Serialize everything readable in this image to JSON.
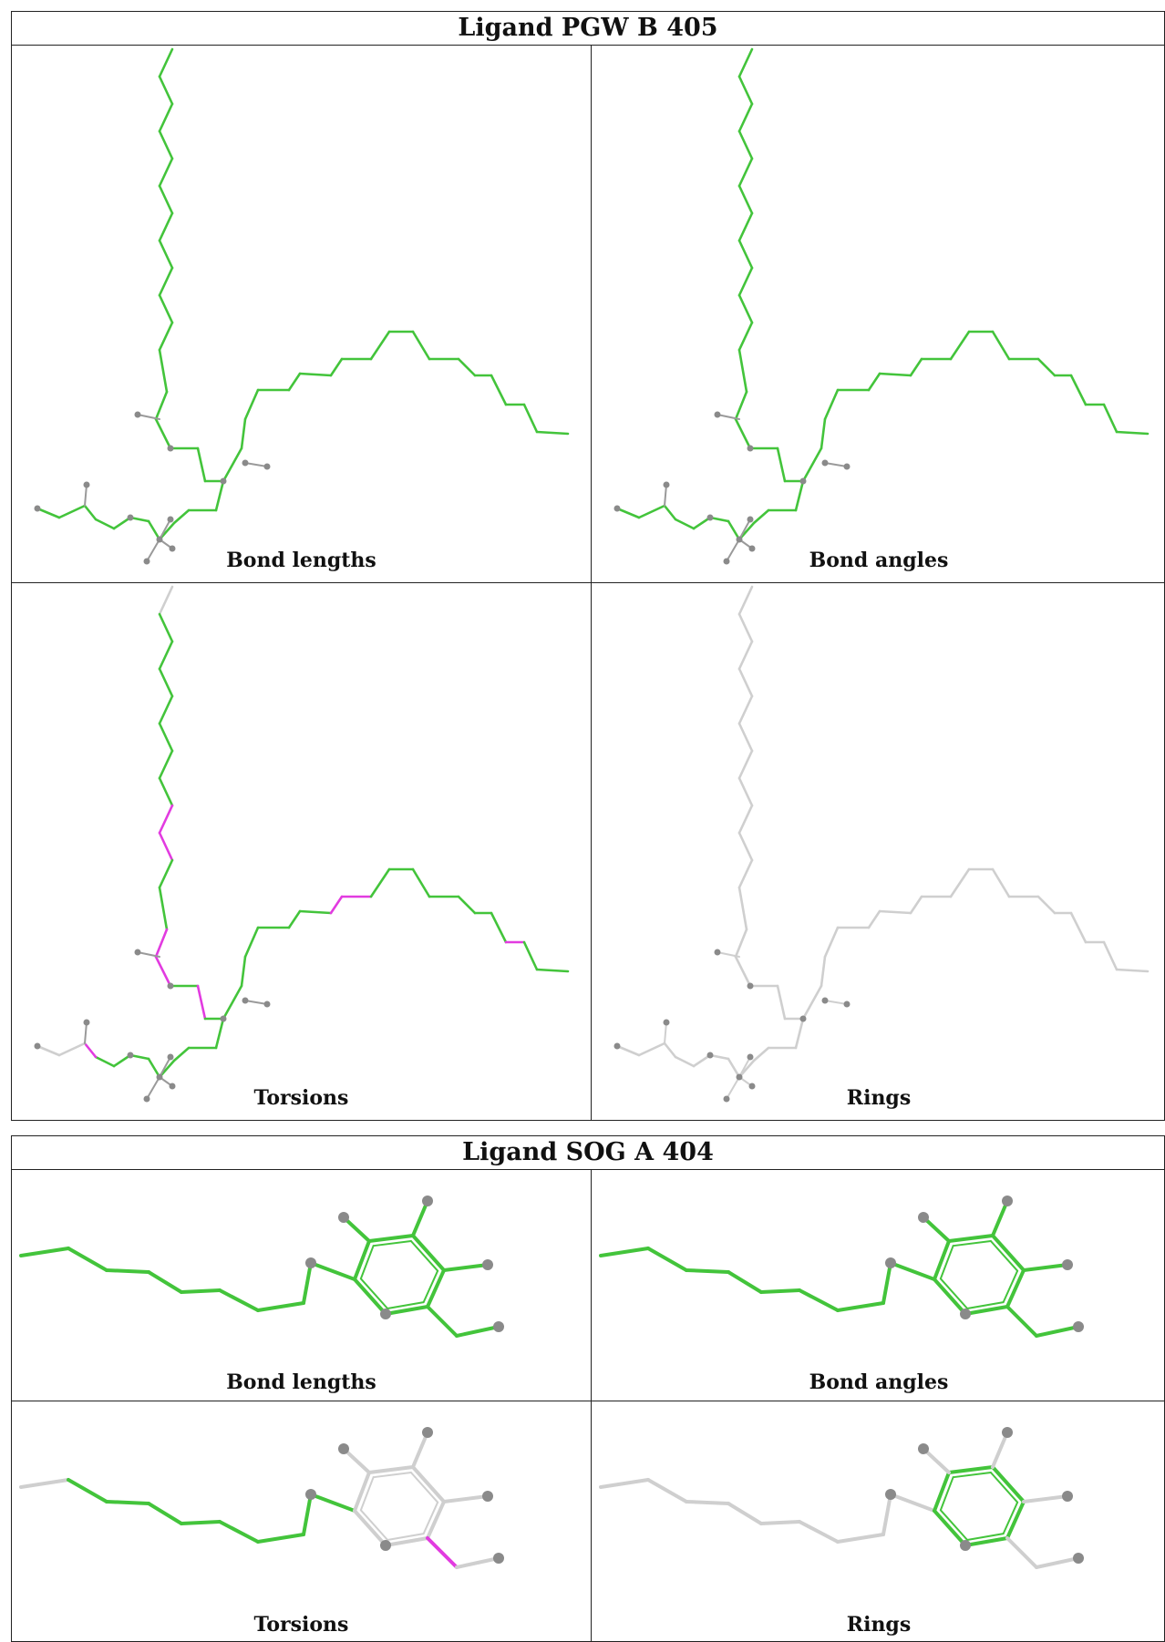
{
  "ligands": [
    {
      "title": "Ligand PGW B 405",
      "panels": [
        {
          "caption": "Bond lengths"
        },
        {
          "caption": "Bond angles"
        },
        {
          "caption": "Torsions"
        },
        {
          "caption": "Rings"
        }
      ]
    },
    {
      "title": "Ligand SOG A 404",
      "panels": [
        {
          "caption": "Bond lengths"
        },
        {
          "caption": "Bond angles"
        },
        {
          "caption": "Torsions"
        },
        {
          "caption": "Rings"
        }
      ]
    }
  ],
  "colors": {
    "ok": "#43c43b",
    "outlier": "#e23be0",
    "not_assessed": "#cfcfcf",
    "atom": "#8a8a8a",
    "border": "#222222"
  }
}
